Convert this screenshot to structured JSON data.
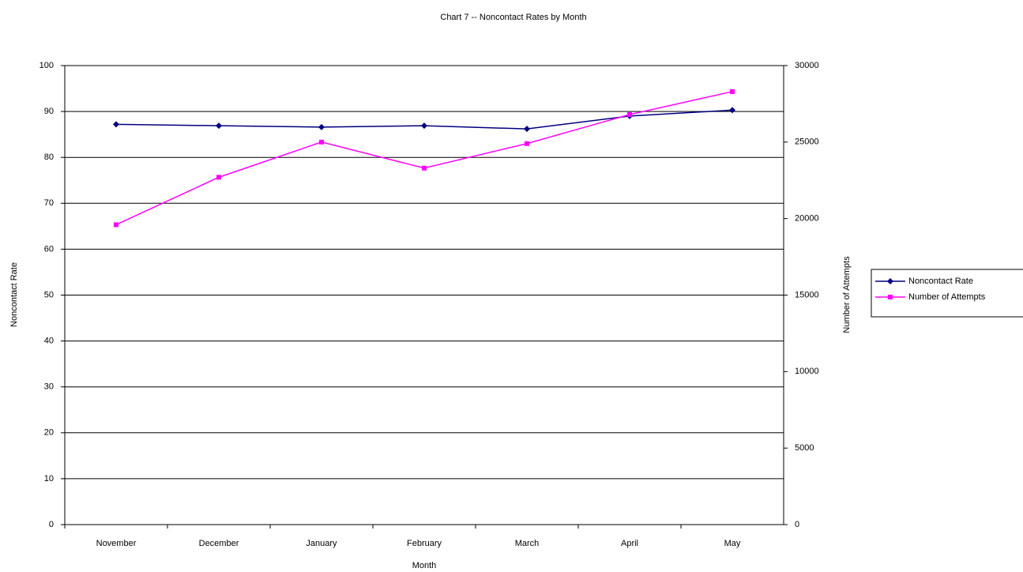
{
  "chart_data": {
    "type": "line",
    "title": "Chart 7 -- Noncontact Rates by Month",
    "x_label": "Month",
    "y_label": "Noncontact Rate",
    "y2_label": "Number of Attempts",
    "categories": [
      "November",
      "December",
      "January",
      "February",
      "March",
      "April",
      "May"
    ],
    "series": [
      {
        "name": "Noncontact Rate",
        "color": "#000080",
        "values": [
          87.2,
          86.9,
          86.6,
          86.9,
          86.2,
          89,
          90.3
        ]
      },
      {
        "name": "Number of Attempts",
        "color": "#ff00ff",
        "axis": "y2",
        "values": [
          19600,
          22700,
          25000,
          23300,
          24900,
          26800,
          28300
        ]
      }
    ],
    "ylim": [
      0,
      100
    ],
    "yticks": [
      0,
      10,
      20,
      30,
      40,
      50,
      60,
      70,
      80,
      90,
      100
    ],
    "y2lim": [
      0,
      30000
    ],
    "y2ticks": [
      0,
      5000,
      10000,
      15000,
      20000,
      25000,
      30000
    ],
    "grid": true,
    "legend": "right"
  }
}
